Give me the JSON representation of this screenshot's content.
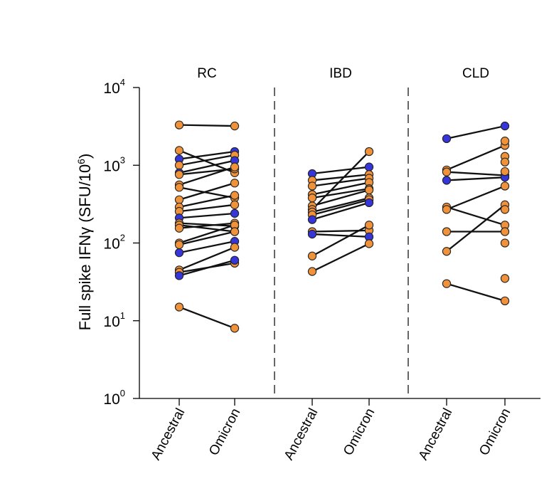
{
  "chart_data": {
    "type": "scatter",
    "subtype": "paired-dot-plot",
    "ylabel_base": "Full spike IFNγ (SFU/10",
    "ylabel_exp": "6",
    "ylabel_close": ")",
    "yscale": "log",
    "ylim": [
      1,
      10000
    ],
    "y_ticks": [
      {
        "base": "10",
        "exp": "0",
        "value": 1
      },
      {
        "base": "10",
        "exp": "1",
        "value": 10
      },
      {
        "base": "10",
        "exp": "2",
        "value": 100
      },
      {
        "base": "10",
        "exp": "3",
        "value": 1000
      },
      {
        "base": "10",
        "exp": "4",
        "value": 10000
      }
    ],
    "colors": {
      "orange": "#f0923a",
      "blue": "#3535d9",
      "line": "#111111",
      "outline": "#222222",
      "divider": "#555555"
    },
    "panels": [
      {
        "title": "RC",
        "categories": [
          "Ancestral",
          "Omicron"
        ],
        "pairs": [
          {
            "ancestral": 3300,
            "omicron": 3200,
            "color": "orange"
          },
          {
            "ancestral": 1550,
            "omicron": 800,
            "color": "orange"
          },
          {
            "ancestral": 1200,
            "omicron": 1500,
            "color": "blue"
          },
          {
            "ancestral": 1000,
            "omicron": 1350,
            "color": "orange"
          },
          {
            "ancestral": 800,
            "omicron": 1150,
            "color": "blue"
          },
          {
            "ancestral": 760,
            "omicron": 900,
            "color": "orange"
          },
          {
            "ancestral": 560,
            "omicron": 950,
            "color": "orange"
          },
          {
            "ancestral": 520,
            "omicron": 380,
            "color": "orange"
          },
          {
            "ancestral": 360,
            "omicron": 590,
            "color": "orange"
          },
          {
            "ancestral": 290,
            "omicron": 410,
            "color": "orange"
          },
          {
            "ancestral": 255,
            "omicron": 310,
            "color": "orange"
          },
          {
            "ancestral": 210,
            "omicron": 240,
            "color": "blue"
          },
          {
            "ancestral": 180,
            "omicron": 165,
            "color": "orange"
          },
          {
            "ancestral": 170,
            "omicron": 140,
            "color": "orange"
          },
          {
            "ancestral": 155,
            "omicron": 180,
            "color": "orange"
          },
          {
            "ancestral": 100,
            "omicron": 170,
            "color": "orange"
          },
          {
            "ancestral": 95,
            "omicron": 140,
            "color": "orange"
          },
          {
            "ancestral": 75,
            "omicron": 105,
            "color": "blue"
          },
          {
            "ancestral": 45,
            "omicron": 88,
            "color": "orange"
          },
          {
            "ancestral": 42,
            "omicron": 55,
            "color": "orange"
          },
          {
            "ancestral": 38,
            "omicron": 60,
            "color": "blue"
          },
          {
            "ancestral": 15,
            "omicron": 8,
            "color": "orange"
          }
        ]
      },
      {
        "title": "IBD",
        "categories": [
          "Ancestral",
          "Omicron"
        ],
        "pairs": [
          {
            "ancestral": 780,
            "omicron": 950,
            "color": "blue"
          },
          {
            "ancestral": 640,
            "omicron": 760,
            "color": "orange"
          },
          {
            "ancestral": 540,
            "omicron": 680,
            "color": "orange"
          },
          {
            "ancestral": 420,
            "omicron": 600,
            "color": "orange"
          },
          {
            "ancestral": 380,
            "omicron": 500,
            "color": "orange"
          },
          {
            "ancestral": 300,
            "omicron": 480,
            "color": "orange"
          },
          {
            "ancestral": 270,
            "omicron": 1500,
            "color": "orange"
          },
          {
            "ancestral": 250,
            "omicron": 380,
            "color": "orange"
          },
          {
            "ancestral": 230,
            "omicron": 360,
            "color": "orange"
          },
          {
            "ancestral": 200,
            "omicron": 330,
            "color": "blue"
          },
          {
            "ancestral": 140,
            "omicron": 145,
            "color": "orange"
          },
          {
            "ancestral": 130,
            "omicron": 120,
            "color": "blue"
          },
          {
            "ancestral": 68,
            "omicron": 170,
            "color": "orange"
          },
          {
            "ancestral": 43,
            "omicron": 98,
            "color": "orange"
          }
        ]
      },
      {
        "title": "CLD",
        "categories": [
          "Ancestral",
          "Omicron"
        ],
        "pairs": [
          {
            "ancestral": 2200,
            "omicron": 3200,
            "color": "blue"
          },
          {
            "ancestral": 870,
            "omicron": 1800,
            "color": "orange"
          },
          {
            "ancestral": 820,
            "omicron": 740,
            "color": "orange"
          },
          {
            "ancestral": 640,
            "omicron": 700,
            "color": "blue"
          },
          {
            "ancestral": 290,
            "omicron": 170,
            "color": "orange"
          },
          {
            "ancestral": 270,
            "omicron": 540,
            "color": "orange"
          },
          {
            "ancestral": 140,
            "omicron": 140,
            "color": "orange"
          },
          {
            "ancestral": 78,
            "omicron": 310,
            "color": "orange"
          },
          {
            "ancestral": 30,
            "omicron": 18,
            "color": "orange"
          }
        ],
        "unpaired_omicron": [
          {
            "value": 2050,
            "color": "orange"
          },
          {
            "value": 1300,
            "color": "orange"
          },
          {
            "value": 1100,
            "color": "orange"
          },
          {
            "value": 830,
            "color": "orange"
          },
          {
            "value": 270,
            "color": "orange"
          },
          {
            "value": 100,
            "color": "orange"
          },
          {
            "value": 35,
            "color": "orange"
          }
        ]
      }
    ]
  }
}
